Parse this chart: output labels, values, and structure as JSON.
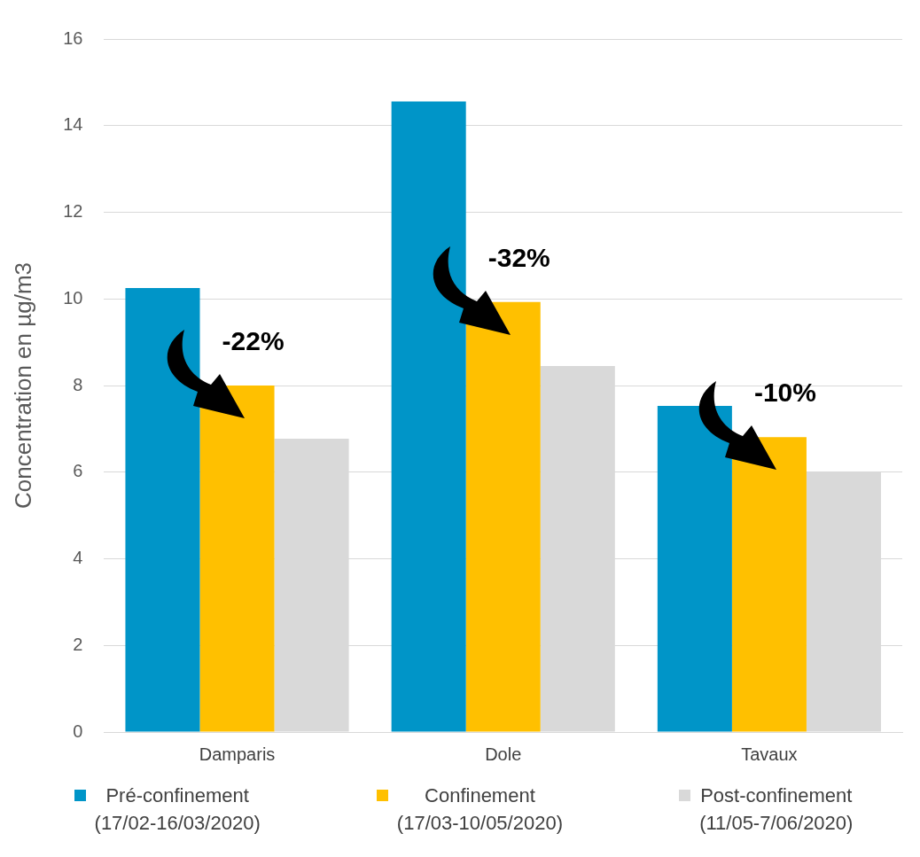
{
  "chart_data": {
    "type": "bar",
    "ylabel": "Concentration en µg/m3",
    "categories": [
      "Damparis",
      "Dole",
      "Tavaux"
    ],
    "series": [
      {
        "name": "Pré-confinement\n(17/02-16/03/2020)",
        "color": "#0095c8",
        "values": [
          10.25,
          14.56,
          7.53
        ]
      },
      {
        "name": "Confinement\n(17/03-10/05/2020)",
        "color": "#ffc000",
        "values": [
          8.0,
          9.93,
          6.81
        ]
      },
      {
        "name": "Post-confinement\n(11/05-7/06/2020)",
        "color": "#d9d9d9",
        "values": [
          6.77,
          8.45,
          6.0
        ]
      }
    ],
    "ylim": [
      0,
      16
    ],
    "yticks": [
      0,
      2,
      4,
      6,
      8,
      10,
      12,
      14,
      16
    ],
    "grid": "y",
    "legend": "bottom",
    "annotations": [
      "-22%",
      "-32%",
      "-10%"
    ]
  }
}
